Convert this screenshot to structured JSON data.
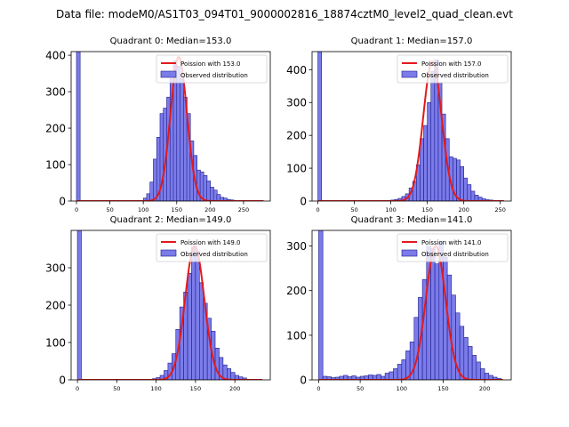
{
  "suptitle": "Data file: modeM0/AS1T03_094T01_9000002816_18874cztM0_level2_quad_clean.evt",
  "colors": {
    "bar_fill": "#7b7bea",
    "bar_edge": "#1c1c8c",
    "fit_line": "#e31a1c",
    "axis": "#000000"
  },
  "chart_data": [
    {
      "type": "bar",
      "title": "Quadrant 0: Median=153.0",
      "legend": [
        "Poission with 153.0",
        "Observed distribution"
      ],
      "legend_position": "top-right",
      "xlim": [
        -8,
        290
      ],
      "ylim": [
        0,
        410
      ],
      "xticks": [
        0,
        50,
        100,
        150,
        200,
        250
      ],
      "yticks": [
        0,
        100,
        200,
        300,
        400
      ],
      "bin_width": 5.5,
      "spike": {
        "x": 0,
        "value": 410
      },
      "bins": [
        [
          100,
          8
        ],
        [
          105,
          20
        ],
        [
          110,
          52
        ],
        [
          115,
          115
        ],
        [
          120,
          175
        ],
        [
          125,
          240
        ],
        [
          130,
          255
        ],
        [
          135,
          285
        ],
        [
          140,
          335
        ],
        [
          145,
          385
        ],
        [
          150,
          370
        ],
        [
          155,
          335
        ],
        [
          160,
          285
        ],
        [
          165,
          240
        ],
        [
          170,
          165
        ],
        [
          175,
          125
        ],
        [
          180,
          85
        ],
        [
          185,
          80
        ],
        [
          190,
          70
        ],
        [
          195,
          55
        ],
        [
          200,
          38
        ],
        [
          205,
          30
        ],
        [
          210,
          18
        ],
        [
          215,
          10
        ],
        [
          220,
          8
        ],
        [
          225,
          4
        ],
        [
          230,
          3
        ],
        [
          235,
          1
        ]
      ],
      "poisson_mean": 153.0,
      "poisson_peak": 395
    },
    {
      "type": "bar",
      "title": "Quadrant 1: Median=157.0",
      "legend": [
        "Poission with 157.0",
        "Observed distribution"
      ],
      "legend_position": "top-right",
      "xlim": [
        -8,
        265
      ],
      "ylim": [
        0,
        455
      ],
      "xticks": [
        0,
        50,
        100,
        150,
        200,
        250
      ],
      "yticks": [
        0,
        100,
        200,
        300,
        400
      ],
      "bin_width": 5.0,
      "spike": {
        "x": 0,
        "value": 455
      },
      "bins": [
        [
          100,
          3
        ],
        [
          105,
          5
        ],
        [
          110,
          8
        ],
        [
          115,
          14
        ],
        [
          120,
          22
        ],
        [
          125,
          40
        ],
        [
          130,
          60
        ],
        [
          135,
          110
        ],
        [
          140,
          190
        ],
        [
          145,
          230
        ],
        [
          150,
          300
        ],
        [
          155,
          395
        ],
        [
          160,
          430
        ],
        [
          165,
          360
        ],
        [
          170,
          265
        ],
        [
          175,
          190
        ],
        [
          180,
          135
        ],
        [
          185,
          130
        ],
        [
          190,
          125
        ],
        [
          195,
          105
        ],
        [
          200,
          70
        ],
        [
          205,
          50
        ],
        [
          210,
          30
        ],
        [
          215,
          18
        ],
        [
          220,
          12
        ],
        [
          225,
          7
        ],
        [
          230,
          4
        ],
        [
          235,
          3
        ]
      ],
      "poisson_mean": 157.0,
      "poisson_peak": 425
    },
    {
      "type": "bar",
      "title": "Quadrant 2: Median=149.0",
      "legend": [
        "Poission with 149.0",
        "Observed distribution"
      ],
      "legend_position": "top-right",
      "xlim": [
        -8,
        245
      ],
      "ylim": [
        0,
        400
      ],
      "xticks": [
        0,
        50,
        100,
        150,
        200
      ],
      "yticks": [
        0,
        100,
        200,
        300
      ],
      "bin_width": 5.0,
      "spike": {
        "x": 0,
        "value": 400
      },
      "bins": [
        [
          95,
          3
        ],
        [
          100,
          6
        ],
        [
          105,
          12
        ],
        [
          110,
          25
        ],
        [
          115,
          45
        ],
        [
          120,
          70
        ],
        [
          125,
          135
        ],
        [
          130,
          195
        ],
        [
          135,
          235
        ],
        [
          140,
          285
        ],
        [
          145,
          355
        ],
        [
          150,
          345
        ],
        [
          155,
          260
        ],
        [
          160,
          205
        ],
        [
          165,
          165
        ],
        [
          170,
          130
        ],
        [
          175,
          85
        ],
        [
          180,
          60
        ],
        [
          185,
          40
        ],
        [
          190,
          30
        ],
        [
          195,
          20
        ],
        [
          200,
          12
        ],
        [
          205,
          8
        ],
        [
          210,
          5
        ]
      ],
      "poisson_mean": 149.0,
      "poisson_peak": 358
    },
    {
      "type": "bar",
      "title": "Quadrant 3: Median=141.0",
      "legend": [
        "Poission with 141.0",
        "Observed distribution"
      ],
      "legend_position": "top-right",
      "xlim": [
        -8,
        232
      ],
      "ylim": [
        0,
        335
      ],
      "xticks": [
        0,
        50,
        100,
        150,
        200
      ],
      "yticks": [
        0,
        100,
        200,
        300
      ],
      "bin_width": 5.0,
      "spike": {
        "x": 0,
        "value": 335
      },
      "bins": [
        [
          5,
          8
        ],
        [
          10,
          7
        ],
        [
          15,
          5
        ],
        [
          20,
          6
        ],
        [
          25,
          8
        ],
        [
          30,
          10
        ],
        [
          35,
          7
        ],
        [
          40,
          9
        ],
        [
          45,
          6
        ],
        [
          50,
          8
        ],
        [
          55,
          9
        ],
        [
          60,
          11
        ],
        [
          65,
          10
        ],
        [
          70,
          12
        ],
        [
          75,
          8
        ],
        [
          80,
          15
        ],
        [
          85,
          18
        ],
        [
          90,
          25
        ],
        [
          95,
          35
        ],
        [
          100,
          45
        ],
        [
          105,
          65
        ],
        [
          110,
          85
        ],
        [
          115,
          140
        ],
        [
          120,
          185
        ],
        [
          125,
          225
        ],
        [
          130,
          300
        ],
        [
          135,
          295
        ],
        [
          140,
          260
        ],
        [
          145,
          310
        ],
        [
          150,
          275
        ],
        [
          155,
          235
        ],
        [
          160,
          190
        ],
        [
          165,
          150
        ],
        [
          170,
          120
        ],
        [
          175,
          95
        ],
        [
          180,
          75
        ],
        [
          185,
          55
        ],
        [
          190,
          40
        ],
        [
          195,
          25
        ],
        [
          200,
          15
        ],
        [
          205,
          10
        ],
        [
          210,
          6
        ],
        [
          215,
          3
        ]
      ],
      "poisson_mean": 141.0,
      "poisson_peak": 300
    }
  ]
}
